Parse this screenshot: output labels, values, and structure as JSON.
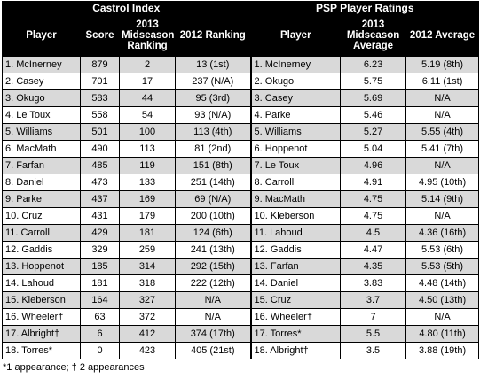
{
  "headers": {
    "castrol_group": "Castrol Index",
    "psp_group": "PSP Player Ratings",
    "player": "Player",
    "score": "Score",
    "midseason_ranking": "2013 Midseason Ranking",
    "ranking_2012": "2012 Ranking",
    "psp_player": "Player",
    "midseason_average": "2013 Midseason Average",
    "average_2012": "2012 Average"
  },
  "rows": [
    {
      "c_player": "1. McInerney",
      "score": "879",
      "mid_rank": "2",
      "rank_2012": "13 (1st)",
      "p_player": "1. McInerney",
      "mid_avg": "6.23",
      "avg_2012": "5.19 (8th)"
    },
    {
      "c_player": "2. Casey",
      "score": "701",
      "mid_rank": "17",
      "rank_2012": "237 (N/A)",
      "p_player": "2. Okugo",
      "mid_avg": "5.75",
      "avg_2012": "6.11 (1st)"
    },
    {
      "c_player": "3. Okugo",
      "score": "583",
      "mid_rank": "44",
      "rank_2012": "95 (3rd)",
      "p_player": "3. Casey",
      "mid_avg": "5.69",
      "avg_2012": "N/A"
    },
    {
      "c_player": "4. Le Toux",
      "score": "558",
      "mid_rank": "54",
      "rank_2012": "93 (N/A)",
      "p_player": "4. Parke",
      "mid_avg": "5.46",
      "avg_2012": "N/A"
    },
    {
      "c_player": "5. Williams",
      "score": "501",
      "mid_rank": "100",
      "rank_2012": "113 (4th)",
      "p_player": "5. Williams",
      "mid_avg": "5.27",
      "avg_2012": "5.55 (4th)"
    },
    {
      "c_player": "6. MacMath",
      "score": "490",
      "mid_rank": "113",
      "rank_2012": "81 (2nd)",
      "p_player": "6.  Hoppenot",
      "mid_avg": "5.04",
      "avg_2012": "5.41 (7th)"
    },
    {
      "c_player": "7. Farfan",
      "score": "485",
      "mid_rank": "119",
      "rank_2012": "151 (8th)",
      "p_player": "7. Le Toux",
      "mid_avg": "4.96",
      "avg_2012": "N/A"
    },
    {
      "c_player": "8. Daniel",
      "score": "473",
      "mid_rank": "133",
      "rank_2012": "251 (14th)",
      "p_player": "8. Carroll",
      "mid_avg": "4.91",
      "avg_2012": "4.95 (10th)"
    },
    {
      "c_player": "9. Parke",
      "score": "437",
      "mid_rank": "169",
      "rank_2012": "69 (N/A)",
      "p_player": "9. MacMath",
      "mid_avg": "4.75",
      "avg_2012": "5.14 (9th)"
    },
    {
      "c_player": "10. Cruz",
      "score": "431",
      "mid_rank": "179",
      "rank_2012": "200 (10th)",
      "p_player": "10. Kleberson",
      "mid_avg": "4.75",
      "avg_2012": "N/A"
    },
    {
      "c_player": "11. Carroll",
      "score": "429",
      "mid_rank": "181",
      "rank_2012": "124 (6th)",
      "p_player": "11. Lahoud",
      "mid_avg": "4.5",
      "avg_2012": "4.36 (16th)"
    },
    {
      "c_player": "12. Gaddis",
      "score": "329",
      "mid_rank": "259",
      "rank_2012": "241 (13th)",
      "p_player": "12. Gaddis",
      "mid_avg": "4.47",
      "avg_2012": "5.53 (6th)"
    },
    {
      "c_player": "13. Hoppenot",
      "score": "185",
      "mid_rank": "314",
      "rank_2012": "292 (15th)",
      "p_player": "13. Farfan",
      "mid_avg": "4.35",
      "avg_2012": "5.53 (5th)"
    },
    {
      "c_player": "14. Lahoud",
      "score": "181",
      "mid_rank": "318",
      "rank_2012": "222 (12th)",
      "p_player": "14. Daniel",
      "mid_avg": "3.83",
      "avg_2012": "4.48 (14th)"
    },
    {
      "c_player": "15. Kleberson",
      "score": "164",
      "mid_rank": "327",
      "rank_2012": "N/A",
      "p_player": "15. Cruz",
      "mid_avg": "3.7",
      "avg_2012": "4.50 (13th)"
    },
    {
      "c_player": "16. Wheeler†",
      "score": "63",
      "mid_rank": "372",
      "rank_2012": "N/A",
      "p_player": "16. Wheeler†",
      "mid_avg": "7",
      "avg_2012": "N/A"
    },
    {
      "c_player": "17. Albright†",
      "score": "6",
      "mid_rank": "412",
      "rank_2012": "374 (17th)",
      "p_player": "17. Torres*",
      "mid_avg": "5.5",
      "avg_2012": "4.80 (11th)"
    },
    {
      "c_player": "18. Torres*",
      "score": "0",
      "mid_rank": "423",
      "rank_2012": "405 (21st)",
      "p_player": "18.  Albright†",
      "mid_avg": "3.5",
      "avg_2012": "3.88 (19th)"
    }
  ],
  "footnote": "*1 appearance; † 2 appearances"
}
